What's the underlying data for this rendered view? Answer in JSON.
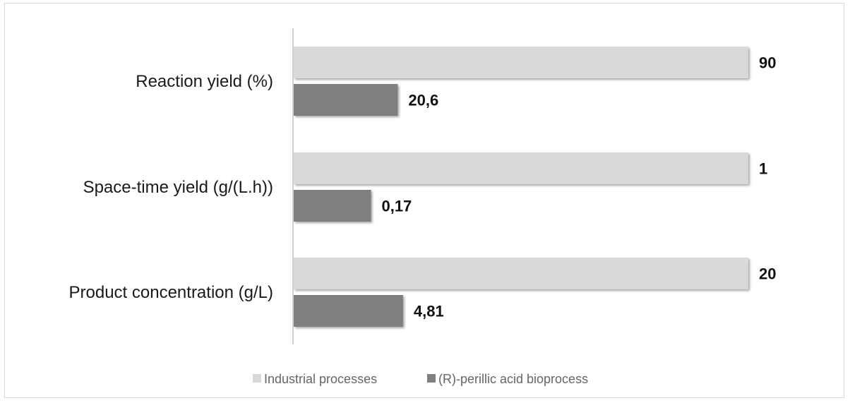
{
  "chart_data": {
    "type": "bar",
    "orientation": "horizontal",
    "categories": [
      "Reaction yield (%)",
      "Space-time yield (g/(L.h))",
      "Product concentration (g/L)"
    ],
    "series": [
      {
        "name": "Industrial processes",
        "color": "#d9d9d9",
        "values": [
          90,
          1,
          20
        ],
        "labels": [
          "90",
          "1",
          "20"
        ]
      },
      {
        "name": "(R)-perillic acid bioprocess",
        "color": "#7f7f7f",
        "values": [
          20.6,
          0.17,
          4.81
        ],
        "labels": [
          "20,6",
          "0,17",
          "4,81"
        ]
      }
    ],
    "scale_note": "each category bar normalized to its industrial reference value",
    "grid": false,
    "legend_position": "bottom",
    "title": "",
    "xlabel": "",
    "ylabel": ""
  }
}
